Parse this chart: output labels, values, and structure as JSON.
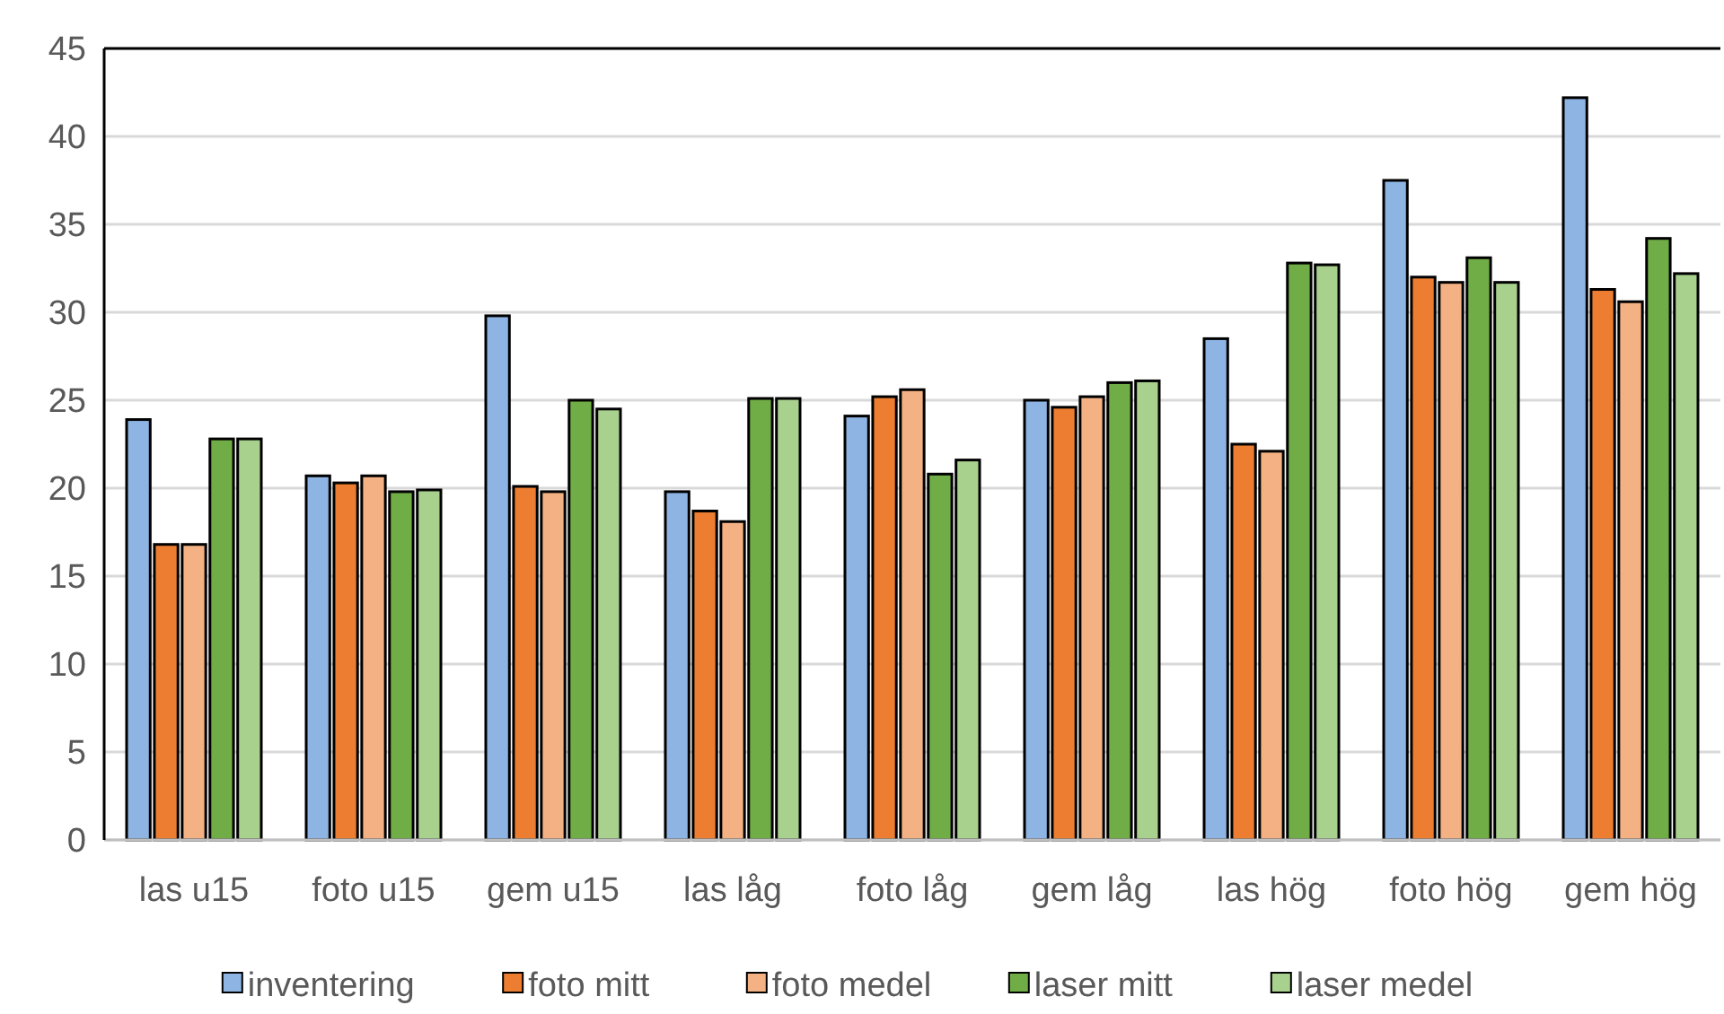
{
  "chart_data": {
    "type": "bar",
    "categories": [
      "las u15",
      "foto u15",
      "gem u15",
      "las låg",
      "foto låg",
      "gem låg",
      "las hög",
      "foto hög",
      "gem hög"
    ],
    "series": [
      {
        "name": "inventering",
        "color": "#8eb4e3",
        "values": [
          23.9,
          20.7,
          29.8,
          19.8,
          24.1,
          25.0,
          28.5,
          37.5,
          42.2
        ]
      },
      {
        "name": "foto mitt",
        "color": "#ed7d31",
        "values": [
          16.8,
          20.3,
          20.1,
          18.7,
          25.2,
          24.6,
          22.5,
          32.0,
          31.3
        ]
      },
      {
        "name": "foto medel",
        "color": "#f4b183",
        "values": [
          16.8,
          20.7,
          19.8,
          18.1,
          25.6,
          25.2,
          22.1,
          31.7,
          30.6
        ]
      },
      {
        "name": "laser mitt",
        "color": "#70ad47",
        "values": [
          22.8,
          19.8,
          25.0,
          25.1,
          20.8,
          26.0,
          32.8,
          33.1,
          34.2
        ]
      },
      {
        "name": "laser medel",
        "color": "#a9d18e",
        "values": [
          22.8,
          19.9,
          24.5,
          25.1,
          21.6,
          26.1,
          32.7,
          31.7,
          32.2
        ]
      }
    ],
    "ylim": [
      0,
      45
    ],
    "yticks": [
      0,
      5,
      10,
      15,
      20,
      25,
      30,
      35,
      40,
      45
    ],
    "grid": "y",
    "legend": "bottom"
  }
}
